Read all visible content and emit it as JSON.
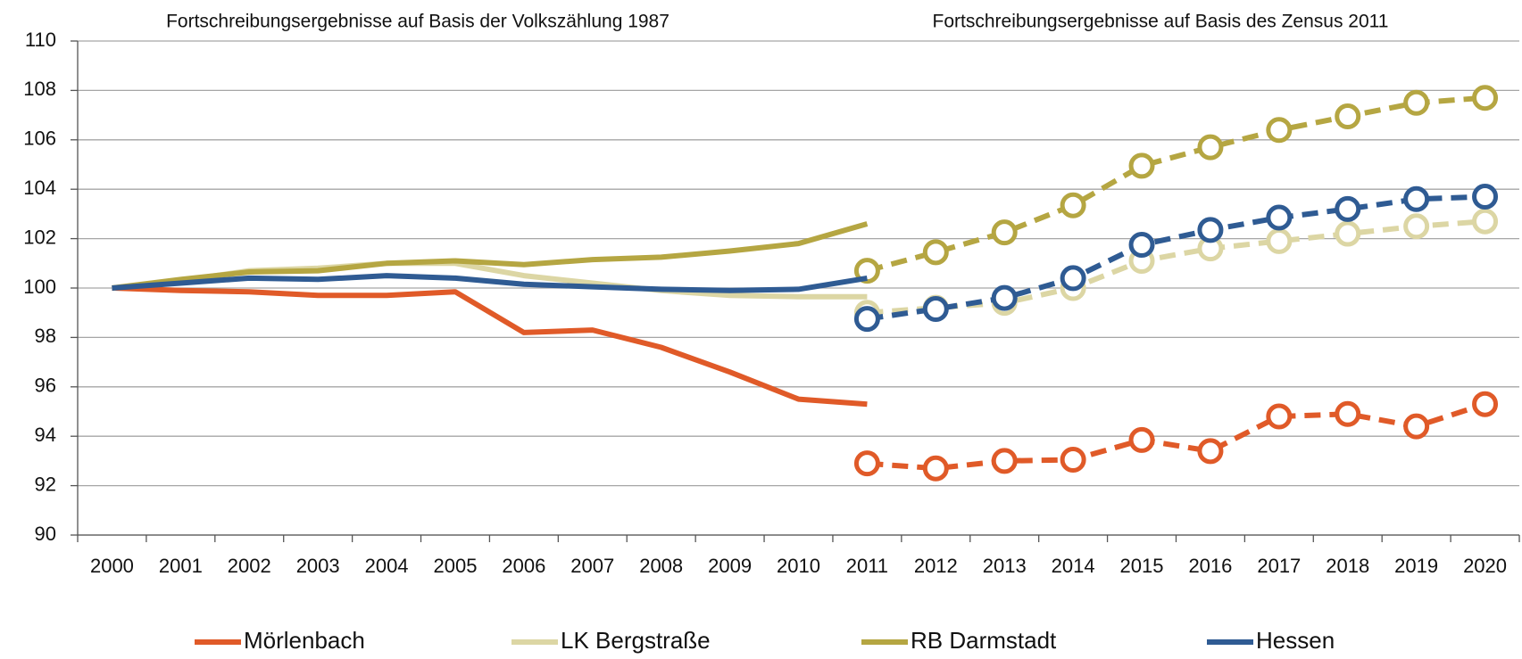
{
  "chart_data": {
    "type": "line",
    "annotations": [
      "Fortschreibungsergebnisse auf Basis der Volkszählung 1987",
      "Fortschreibungsergebnisse auf Basis des Zensus 2011"
    ],
    "categories": [
      "2000",
      "2001",
      "2002",
      "2003",
      "2004",
      "2005",
      "2006",
      "2007",
      "2008",
      "2009",
      "2010",
      "2011",
      "2012",
      "2013",
      "2014",
      "2015",
      "2016",
      "2017",
      "2018",
      "2019",
      "2020"
    ],
    "series": [
      {
        "name": "Mörlenbach",
        "color": "#e05a28",
        "values": [
          100,
          99.9,
          99.85,
          99.7,
          99.7,
          99.85,
          98.2,
          98.3,
          97.6,
          96.6,
          95.5,
          95.3,
          null,
          null,
          null,
          null,
          null,
          null,
          null,
          null,
          null
        ],
        "census_values": [
          null,
          null,
          null,
          null,
          null,
          null,
          null,
          null,
          null,
          null,
          null,
          92.9,
          92.7,
          93.0,
          93.05,
          93.85,
          93.4,
          94.8,
          94.9,
          94.4,
          95.3
        ]
      },
      {
        "name": "LK Bergstraße",
        "color": "#dcd6a4",
        "values": [
          100,
          100.3,
          100.7,
          100.8,
          101.0,
          101.0,
          100.5,
          100.2,
          99.9,
          99.7,
          99.65,
          99.65,
          null,
          null,
          null,
          null,
          null,
          null,
          null,
          null,
          null
        ],
        "census_values": [
          null,
          null,
          null,
          null,
          null,
          null,
          null,
          null,
          null,
          null,
          null,
          99.0,
          99.2,
          99.4,
          100.0,
          101.1,
          101.6,
          101.9,
          102.2,
          102.5,
          102.7
        ]
      },
      {
        "name": "RB Darmstadt",
        "color": "#b5a642",
        "values": [
          100,
          100.35,
          100.65,
          100.7,
          101.0,
          101.1,
          100.95,
          101.15,
          101.25,
          101.5,
          101.8,
          102.6,
          null,
          null,
          null,
          null,
          null,
          null,
          null,
          null,
          null
        ],
        "census_values": [
          null,
          null,
          null,
          null,
          null,
          null,
          null,
          null,
          null,
          null,
          null,
          100.7,
          101.45,
          102.25,
          103.35,
          104.95,
          105.7,
          106.4,
          106.95,
          107.5,
          107.7
        ]
      },
      {
        "name": "Hessen",
        "color": "#2f5b93",
        "values": [
          100,
          100.2,
          100.4,
          100.35,
          100.5,
          100.4,
          100.15,
          100.05,
          99.95,
          99.9,
          99.95,
          100.4,
          null,
          null,
          null,
          null,
          null,
          null,
          null,
          null,
          null
        ],
        "census_values": [
          null,
          null,
          null,
          null,
          null,
          null,
          null,
          null,
          null,
          null,
          null,
          98.75,
          99.15,
          99.6,
          100.4,
          101.75,
          102.35,
          102.85,
          103.2,
          103.6,
          103.7
        ]
      }
    ],
    "ylim": [
      90,
      110
    ],
    "yticks": [
      90,
      92,
      94,
      96,
      98,
      100,
      102,
      104,
      106,
      108,
      110
    ],
    "grid": true
  }
}
